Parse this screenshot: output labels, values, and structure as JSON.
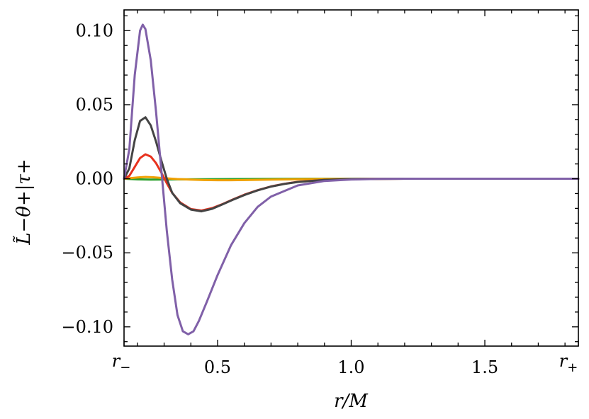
{
  "chart_data": {
    "type": "line",
    "xlabel": "r/M",
    "ylabel": "L̃−θ+|τ+",
    "xlim": [
      0.15,
      1.85
    ],
    "ylim": [
      -0.113,
      0.114
    ],
    "x_ticks": [
      {
        "value": 0.15,
        "label": "r−"
      },
      {
        "value": 0.5,
        "label": "0.5"
      },
      {
        "value": 1.0,
        "label": "1.0"
      },
      {
        "value": 1.5,
        "label": "1.5"
      },
      {
        "value": 1.85,
        "label": "r+"
      }
    ],
    "y_ticks": [
      {
        "value": 0.1,
        "label": "0.10"
      },
      {
        "value": 0.05,
        "label": "0.05"
      },
      {
        "value": 0.0,
        "label": "0.00"
      },
      {
        "value": -0.05,
        "label": "−0.05"
      },
      {
        "value": -0.1,
        "label": "−0.10"
      }
    ],
    "series": [
      {
        "color": "#2ca02c",
        "x": [
          0.15,
          0.2,
          0.25,
          0.3,
          0.35,
          0.45,
          0.55,
          0.7,
          0.9,
          1.2,
          1.85
        ],
        "y": [
          0.0,
          -0.0004,
          -0.0006,
          -0.0005,
          -0.0004,
          -0.0003,
          -0.0002,
          -0.0001,
          0.0,
          0.0,
          0.0
        ]
      },
      {
        "color": "#f0a000",
        "x": [
          0.15,
          0.18,
          0.2,
          0.23,
          0.26,
          0.3,
          0.35,
          0.4,
          0.45,
          0.5,
          0.55,
          0.6,
          0.7,
          0.8,
          0.95,
          1.2,
          1.85
        ],
        "y": [
          0.0,
          0.0005,
          0.0009,
          0.0012,
          0.001,
          0.0004,
          -0.0002,
          -0.0006,
          -0.0009,
          -0.001,
          -0.001,
          -0.0009,
          -0.0006,
          -0.0003,
          -0.0001,
          0.0,
          0.0
        ]
      },
      {
        "color": "#e8321e",
        "x": [
          0.15,
          0.17,
          0.19,
          0.21,
          0.23,
          0.25,
          0.27,
          0.29,
          0.31,
          0.33,
          0.36,
          0.4,
          0.44,
          0.48,
          0.52,
          0.56,
          0.6,
          0.65,
          0.7,
          0.75,
          0.8,
          0.9,
          1.0,
          1.2,
          1.85
        ],
        "y": [
          0.0,
          0.002,
          0.008,
          0.014,
          0.0165,
          0.015,
          0.0105,
          0.004,
          -0.003,
          -0.0095,
          -0.016,
          -0.0205,
          -0.0215,
          -0.0198,
          -0.017,
          -0.0138,
          -0.0108,
          -0.0077,
          -0.0052,
          -0.0034,
          -0.0021,
          -0.0008,
          -0.0002,
          0.0,
          0.0
        ]
      },
      {
        "color": "#444444",
        "x": [
          0.15,
          0.17,
          0.19,
          0.21,
          0.23,
          0.25,
          0.27,
          0.29,
          0.31,
          0.33,
          0.36,
          0.4,
          0.44,
          0.48,
          0.52,
          0.56,
          0.6,
          0.65,
          0.7,
          0.75,
          0.8,
          0.9,
          1.0,
          1.2,
          1.85
        ],
        "y": [
          0.0,
          0.007,
          0.026,
          0.039,
          0.0415,
          0.036,
          0.025,
          0.012,
          0.0,
          -0.0095,
          -0.0165,
          -0.0208,
          -0.022,
          -0.0203,
          -0.0172,
          -0.014,
          -0.011,
          -0.0078,
          -0.0053,
          -0.0035,
          -0.0022,
          -0.0008,
          -0.0002,
          0.0,
          0.0
        ]
      },
      {
        "color": "#8060a8",
        "x": [
          0.15,
          0.17,
          0.19,
          0.21,
          0.22,
          0.23,
          0.25,
          0.27,
          0.29,
          0.31,
          0.33,
          0.35,
          0.37,
          0.39,
          0.41,
          0.43,
          0.46,
          0.5,
          0.55,
          0.6,
          0.65,
          0.7,
          0.8,
          0.9,
          1.0,
          1.1,
          1.25,
          1.85
        ],
        "y": [
          0.0,
          0.02,
          0.07,
          0.1,
          0.104,
          0.101,
          0.08,
          0.045,
          0.005,
          -0.035,
          -0.068,
          -0.092,
          -0.103,
          -0.105,
          -0.103,
          -0.096,
          -0.083,
          -0.065,
          -0.045,
          -0.03,
          -0.019,
          -0.012,
          -0.0045,
          -0.0015,
          -0.0005,
          -0.0001,
          0.0,
          0.0
        ]
      }
    ]
  }
}
